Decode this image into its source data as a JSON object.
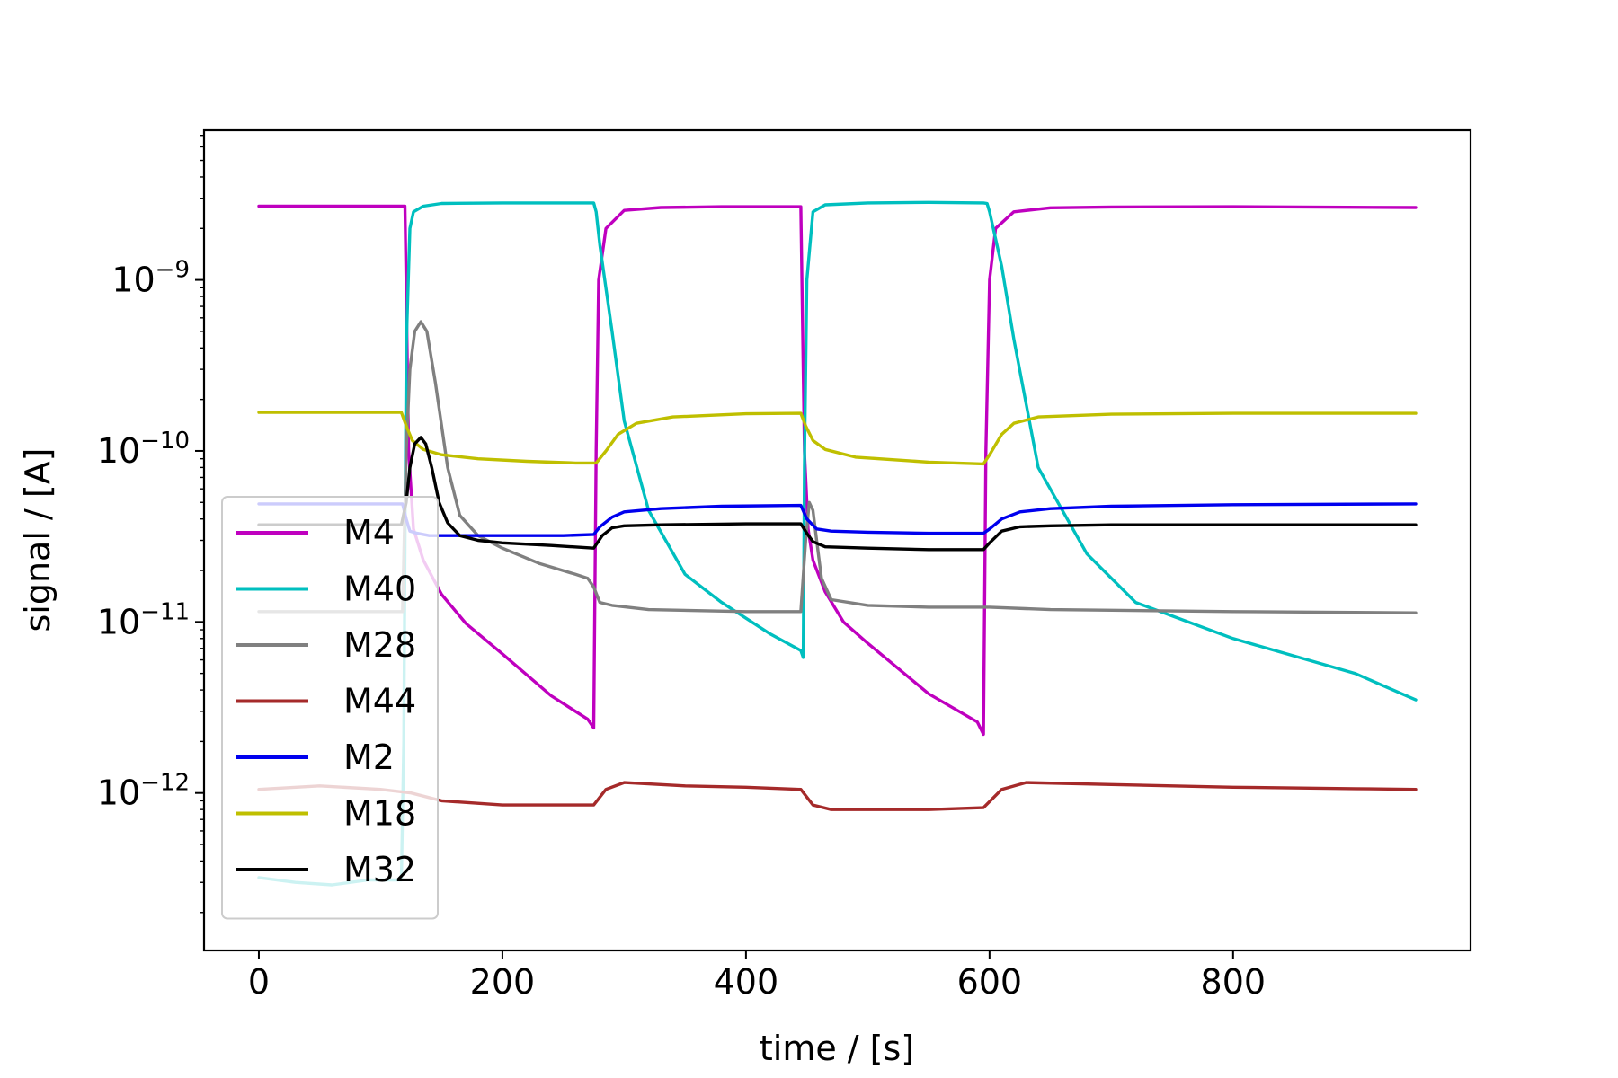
{
  "chart_data": {
    "type": "line",
    "title": "",
    "xlabel": "time / [s]",
    "ylabel": "signal / [A]",
    "xlim": [
      -45,
      995
    ],
    "ylim": [
      1.2e-13,
      7.5e-09
    ],
    "yscale": "log",
    "xticks": [
      {
        "value": 0,
        "label": "0"
      },
      {
        "value": 200,
        "label": "200"
      },
      {
        "value": 400,
        "label": "400"
      },
      {
        "value": 600,
        "label": "600"
      },
      {
        "value": 800,
        "label": "800"
      }
    ],
    "yticks": [
      {
        "value": 1e-12,
        "base": "10",
        "exp": "−12"
      },
      {
        "value": 1e-11,
        "base": "10",
        "exp": "−11"
      },
      {
        "value": 1e-10,
        "base": "10",
        "exp": "−10"
      },
      {
        "value": 1e-09,
        "base": "10",
        "exp": "−9"
      }
    ],
    "grid": false,
    "legend_position": "lower-left",
    "series": [
      {
        "name": "M4",
        "color": "#bf00bf",
        "x": [
          0,
          117,
          120,
          123,
          127,
          135,
          150,
          170,
          200,
          240,
          270,
          275,
          277,
          279,
          285,
          300,
          330,
          380,
          445,
          448,
          451,
          455,
          465,
          480,
          500,
          550,
          590,
          595,
          597,
          600,
          605,
          620,
          650,
          700,
          800,
          950
        ],
        "y": [
          2.7e-09,
          2.7e-09,
          2.7e-09,
          1e-10,
          3.5e-11,
          2.3e-11,
          1.45e-11,
          9.8e-12,
          6.5e-12,
          3.7e-12,
          2.7e-12,
          2.4e-12,
          1e-10,
          1e-09,
          2e-09,
          2.55e-09,
          2.65e-09,
          2.68e-09,
          2.68e-09,
          1e-10,
          3.5e-11,
          2.3e-11,
          1.5e-11,
          1e-11,
          7.5e-12,
          3.8e-12,
          2.6e-12,
          2.2e-12,
          1e-10,
          1e-09,
          2e-09,
          2.5e-09,
          2.64e-09,
          2.67e-09,
          2.68e-09,
          2.65e-09
        ]
      },
      {
        "name": "M40",
        "color": "#00bfbf",
        "x": [
          0,
          30,
          60,
          90,
          117,
          119,
          121,
          124,
          127,
          135,
          150,
          200,
          250,
          275,
          277,
          280,
          290,
          300,
          320,
          350,
          380,
          420,
          445,
          447,
          448,
          450,
          455,
          465,
          500,
          550,
          595,
          598,
          600,
          610,
          620,
          640,
          680,
          720,
          800,
          900,
          950
        ],
        "y": [
          3.2e-13,
          3e-13,
          2.9e-13,
          3.1e-13,
          3.1e-13,
          2e-12,
          4e-10,
          2e-09,
          2.5e-09,
          2.7e-09,
          2.8e-09,
          2.82e-09,
          2.82e-09,
          2.82e-09,
          2.5e-09,
          1.6e-09,
          5e-10,
          1.5e-10,
          4.5e-11,
          1.9e-11,
          1.3e-11,
          8.5e-12,
          6.8e-12,
          6.2e-12,
          8e-11,
          1e-09,
          2.5e-09,
          2.75e-09,
          2.82e-09,
          2.84e-09,
          2.82e-09,
          2.8e-09,
          2.5e-09,
          1.2e-09,
          4.5e-10,
          8e-11,
          2.5e-11,
          1.3e-11,
          8e-12,
          5e-12,
          3.5e-12
        ]
      },
      {
        "name": "M28",
        "color": "#808080",
        "x": [
          0,
          118,
          121,
          124,
          128,
          133,
          138,
          145,
          155,
          165,
          180,
          200,
          230,
          260,
          270,
          275,
          280,
          290,
          320,
          400,
          445,
          449,
          452,
          455,
          458,
          462,
          470,
          500,
          550,
          595,
          600,
          650,
          800,
          950
        ],
        "y": [
          1.15e-11,
          1.15e-11,
          1e-10,
          3e-10,
          5e-10,
          5.7e-10,
          5e-10,
          2.5e-10,
          8e-11,
          4.2e-11,
          3.2e-11,
          2.7e-11,
          2.2e-11,
          1.9e-11,
          1.8e-11,
          1.6e-11,
          1.3e-11,
          1.25e-11,
          1.18e-11,
          1.15e-11,
          1.15e-11,
          3e-11,
          5e-11,
          4.5e-11,
          3e-11,
          1.8e-11,
          1.35e-11,
          1.25e-11,
          1.22e-11,
          1.22e-11,
          1.22e-11,
          1.18e-11,
          1.15e-11,
          1.13e-11
        ]
      },
      {
        "name": "M44",
        "color": "#a52a2a",
        "x": [
          0,
          50,
          100,
          125,
          150,
          200,
          250,
          275,
          285,
          300,
          350,
          400,
          445,
          455,
          470,
          500,
          550,
          595,
          610,
          630,
          700,
          800,
          900,
          950
        ],
        "y": [
          1.05e-12,
          1.1e-12,
          1.05e-12,
          1e-12,
          9e-13,
          8.5e-13,
          8.5e-13,
          8.5e-13,
          1.05e-12,
          1.15e-12,
          1.1e-12,
          1.08e-12,
          1.05e-12,
          8.5e-13,
          8e-13,
          8e-13,
          8e-13,
          8.2e-13,
          1.05e-12,
          1.15e-12,
          1.12e-12,
          1.08e-12,
          1.06e-12,
          1.05e-12
        ]
      },
      {
        "name": "M2",
        "color": "#0000ee",
        "x": [
          0,
          118,
          121,
          124,
          130,
          140,
          160,
          200,
          250,
          275,
          280,
          290,
          300,
          330,
          380,
          445,
          450,
          458,
          470,
          500,
          550,
          595,
          600,
          610,
          625,
          650,
          700,
          800,
          950
        ],
        "y": [
          4.9e-11,
          4.9e-11,
          4e-11,
          3.4e-11,
          3.3e-11,
          3.2e-11,
          3.2e-11,
          3.2e-11,
          3.2e-11,
          3.25e-11,
          3.6e-11,
          4.1e-11,
          4.4e-11,
          4.6e-11,
          4.75e-11,
          4.8e-11,
          4e-11,
          3.5e-11,
          3.4e-11,
          3.35e-11,
          3.3e-11,
          3.3e-11,
          3.5e-11,
          4e-11,
          4.4e-11,
          4.6e-11,
          4.75e-11,
          4.85e-11,
          4.9e-11
        ]
      },
      {
        "name": "M18",
        "color": "#bfbf00",
        "x": [
          0,
          117,
          121,
          126,
          135,
          150,
          180,
          220,
          260,
          277,
          285,
          295,
          310,
          340,
          400,
          445,
          449,
          455,
          465,
          490,
          550,
          595,
          600,
          610,
          620,
          640,
          700,
          800,
          950
        ],
        "y": [
          1.68e-10,
          1.68e-10,
          1.4e-10,
          1.15e-10,
          1.02e-10,
          9.5e-11,
          9e-11,
          8.7e-11,
          8.5e-11,
          8.5e-11,
          1e-10,
          1.25e-10,
          1.45e-10,
          1.58e-10,
          1.65e-10,
          1.66e-10,
          1.4e-10,
          1.15e-10,
          1.02e-10,
          9.2e-11,
          8.6e-11,
          8.4e-11,
          9.5e-11,
          1.25e-10,
          1.45e-10,
          1.58e-10,
          1.64e-10,
          1.66e-10,
          1.66e-10
        ]
      },
      {
        "name": "M32",
        "color": "#000000",
        "x": [
          0,
          117,
          121,
          124,
          128,
          133,
          137,
          142,
          148,
          155,
          165,
          180,
          200,
          240,
          275,
          282,
          290,
          300,
          330,
          400,
          445,
          450,
          455,
          465,
          500,
          550,
          595,
          600,
          610,
          625,
          650,
          700,
          800,
          950
        ],
        "y": [
          3.7e-11,
          3.7e-11,
          5e-11,
          8e-11,
          1.1e-10,
          1.2e-10,
          1.1e-10,
          8e-11,
          5e-11,
          3.8e-11,
          3.2e-11,
          3e-11,
          2.9e-11,
          2.8e-11,
          2.7e-11,
          3.2e-11,
          3.55e-11,
          3.65e-11,
          3.7e-11,
          3.75e-11,
          3.75e-11,
          3.3e-11,
          2.95e-11,
          2.75e-11,
          2.7e-11,
          2.65e-11,
          2.65e-11,
          2.9e-11,
          3.4e-11,
          3.6e-11,
          3.65e-11,
          3.7e-11,
          3.7e-11,
          3.7e-11
        ]
      }
    ]
  }
}
